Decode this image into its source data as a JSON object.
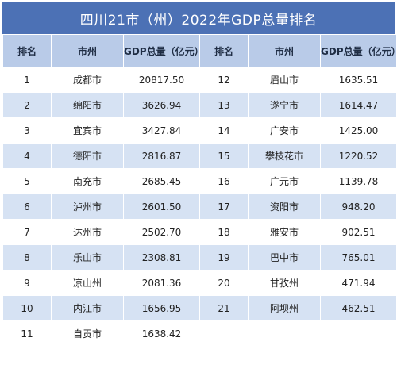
{
  "title": "四川21市（州）2022年GDP总量排名",
  "headers": [
    "排名",
    "市州",
    "GDP总量（亿元）",
    "排名",
    "市州",
    "GDP总量（亿元）"
  ],
  "rows": [
    {
      "rank_a": "1",
      "city_a": "成都市",
      "gdp_a": "20817.50",
      "rank_b": "12",
      "city_b": "眉山市",
      "gdp_b": "1635.51"
    },
    {
      "rank_a": "2",
      "city_a": "绵阳市",
      "gdp_a": "3626.94",
      "rank_b": "13",
      "city_b": "遂宁市",
      "gdp_b": "1614.47"
    },
    {
      "rank_a": "3",
      "city_a": "宜宾市",
      "gdp_a": "3427.84",
      "rank_b": "14",
      "city_b": "广安市",
      "gdp_b": "1425.00"
    },
    {
      "rank_a": "4",
      "city_a": "德阳市",
      "gdp_a": "2816.87",
      "rank_b": "15",
      "city_b": "攀枝花市",
      "gdp_b": "1220.52"
    },
    {
      "rank_a": "5",
      "city_a": "南充市",
      "gdp_a": "2685.45",
      "rank_b": "16",
      "city_b": "广元市",
      "gdp_b": "1139.78"
    },
    {
      "rank_a": "6",
      "city_a": "泸州市",
      "gdp_a": "2601.50",
      "rank_b": "17",
      "city_b": "资阳市",
      "gdp_b": "948.20"
    },
    {
      "rank_a": "7",
      "city_a": "达州市",
      "gdp_a": "2502.70",
      "rank_b": "18",
      "city_b": "雅安市",
      "gdp_b": "902.51"
    },
    {
      "rank_a": "8",
      "city_a": "乐山市",
      "gdp_a": "2308.81",
      "rank_b": "19",
      "city_b": "巴中市",
      "gdp_b": "765.01"
    },
    {
      "rank_a": "9",
      "city_a": "凉山州",
      "gdp_a": "2081.36",
      "rank_b": "20",
      "city_b": "甘孜州",
      "gdp_b": "471.94"
    },
    {
      "rank_a": "10",
      "city_a": "内江市",
      "gdp_a": "1656.95",
      "rank_b": "21",
      "city_b": "阿坝州",
      "gdp_b": "462.51"
    },
    {
      "rank_a": "11",
      "city_a": "自贡市",
      "gdp_a": "1638.42",
      "rank_b": "",
      "city_b": "",
      "gdp_b": ""
    }
  ]
}
